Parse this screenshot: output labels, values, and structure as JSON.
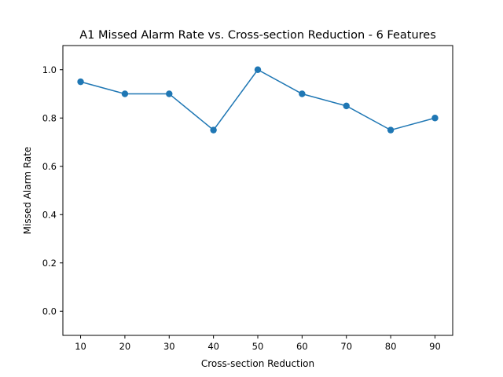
{
  "chart_data": {
    "type": "line",
    "title": "A1 Missed Alarm Rate vs. Cross-section Reduction - 6 Features",
    "xlabel": "Cross-section Reduction",
    "ylabel": "Missed Alarm Rate",
    "x": [
      10,
      20,
      30,
      40,
      50,
      60,
      70,
      80,
      90
    ],
    "series": [
      {
        "name": "Missed Alarm Rate",
        "values": [
          0.95,
          0.9,
          0.9,
          0.75,
          1.0,
          0.9,
          0.85,
          0.75,
          0.8
        ],
        "color": "#1f77b4",
        "marker": "circle"
      }
    ],
    "xlim": [
      6,
      94
    ],
    "ylim": [
      -0.1,
      1.1
    ],
    "xticks": [
      10,
      20,
      30,
      40,
      50,
      60,
      70,
      80,
      90
    ],
    "xtick_labels": [
      "10",
      "20",
      "30",
      "40",
      "50",
      "60",
      "70",
      "80",
      "90"
    ],
    "yticks": [
      0.0,
      0.2,
      0.4,
      0.6,
      0.8,
      1.0
    ],
    "ytick_labels": [
      "0.0",
      "0.2",
      "0.4",
      "0.6",
      "0.8",
      "1.0"
    ],
    "grid": false,
    "legend": "none"
  }
}
